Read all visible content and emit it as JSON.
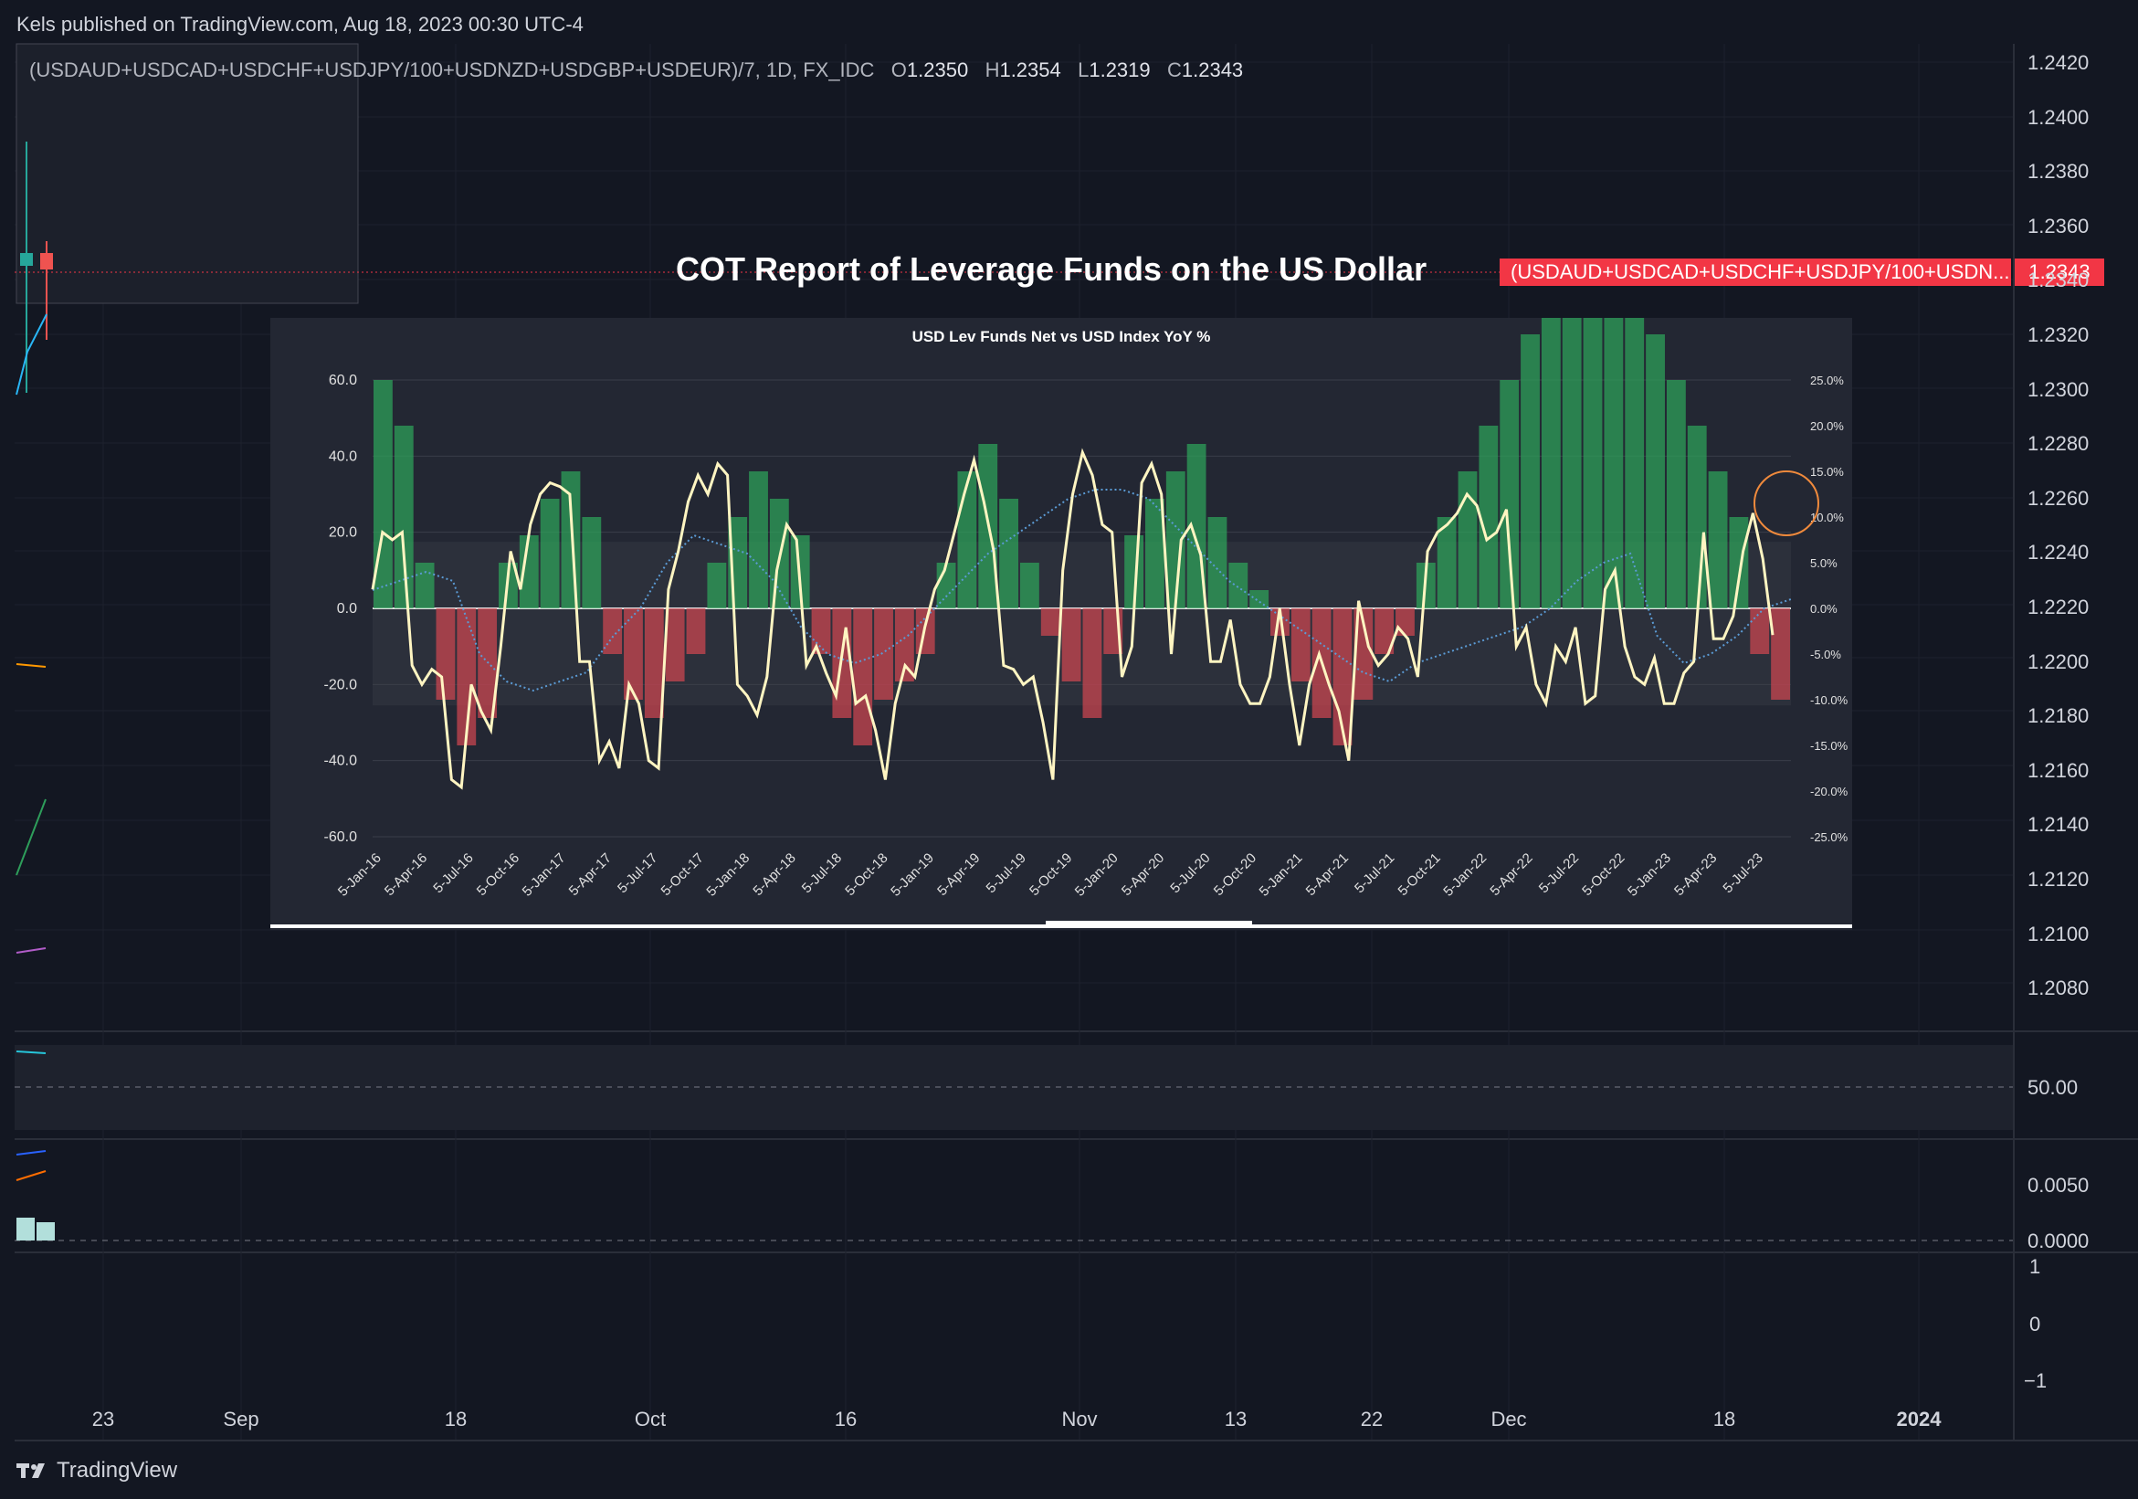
{
  "header": {
    "published": "Kels published on TradingView.com, Aug 18, 2023 00:30 UTC-4"
  },
  "symbol": {
    "name": "(USDAUD+USDCAD+USDCHF+USDJPY/100+USDNZD+USDGBP+USDEUR)/7, 1D, FX_IDC",
    "o_label": "O",
    "o": "1.2350",
    "h_label": "H",
    "h": "1.2354",
    "l_label": "L",
    "l": "1.2319",
    "c_label": "C",
    "c": "1.2343"
  },
  "overlay_title": "COT Report of Leverage Funds on the US Dollar",
  "price_tag": {
    "label": "(USDAUD+USDCAD+USDCHF+USDJPY/100+USDN...",
    "value": "1.2343"
  },
  "price_axis": [
    "1.2420",
    "1.2400",
    "1.2380",
    "1.2360",
    "1.2340",
    "1.2320",
    "1.2300",
    "1.2280",
    "1.2260",
    "1.2240",
    "1.2220",
    "1.2200",
    "1.2180",
    "1.2160",
    "1.2140",
    "1.2120",
    "1.2100",
    "1.2080"
  ],
  "rsi_axis": [
    "50.00"
  ],
  "macd_axis": [
    "0.0050",
    "0.0000"
  ],
  "osc_axis": [
    "1",
    "0",
    "−1"
  ],
  "time_axis": [
    "23",
    "Sep",
    "18",
    "Oct",
    "16",
    "Nov",
    "13",
    "22",
    "Dec",
    "18",
    "2024"
  ],
  "footer": {
    "brand": "TradingView"
  },
  "colors": {
    "background": "#131722",
    "up": "#26a69a",
    "down": "#ef5350",
    "price_tag": "#f23645",
    "inset_bg": "#232733",
    "line": "#fff5c2",
    "dotted": "#5b9bd5"
  },
  "chart_data": {
    "type": "bar",
    "title": "USD Lev Funds Net vs USD Index YoY %",
    "x_labels": [
      "5-Jan-16",
      "5-Apr-16",
      "5-Jul-16",
      "5-Oct-16",
      "5-Jan-17",
      "5-Apr-17",
      "5-Jul-17",
      "5-Oct-17",
      "5-Jan-18",
      "5-Apr-18",
      "5-Jul-18",
      "5-Oct-18",
      "5-Jan-19",
      "5-Apr-19",
      "5-Jul-19",
      "5-Oct-19",
      "5-Jan-20",
      "5-Apr-20",
      "5-Jul-20",
      "5-Oct-20",
      "5-Jan-21",
      "5-Apr-21",
      "5-Jul-21",
      "5-Oct-21",
      "5-Jan-22",
      "5-Apr-22",
      "5-Jul-22",
      "5-Oct-22",
      "5-Jan-23",
      "5-Apr-23",
      "5-Jul-23"
    ],
    "y_left_ticks": [
      "60.0",
      "40.0",
      "20.0",
      "0.0",
      "-20.0",
      "-40.0",
      "-60.0"
    ],
    "y_left_range": [
      -60,
      60
    ],
    "y_right_ticks": [
      "25.0%",
      "20.0%",
      "15.0%",
      "10.0%",
      "5.0%",
      "0.0%",
      "-5.0%",
      "-10.0%",
      "-15.0%",
      "-20.0%",
      "-25.0%"
    ],
    "y_right_range": [
      -25,
      25
    ],
    "series": [
      {
        "type": "line",
        "values": [
          5,
          20,
          18,
          20,
          -15,
          -20,
          -16,
          -18,
          -45,
          -47,
          -20,
          -27,
          -32,
          -10,
          15,
          5,
          22,
          30,
          33,
          32,
          30,
          -14,
          -14,
          -40,
          -35,
          -42,
          -20,
          -25,
          -40,
          -42,
          5,
          15,
          28,
          35,
          30,
          38,
          35,
          -20,
          -23,
          -28,
          -18,
          10,
          22,
          18,
          -15,
          -10,
          -17,
          -23,
          -5,
          -25,
          -23,
          -32,
          -45,
          -25,
          -15,
          -18,
          -5,
          5,
          10,
          20,
          30,
          39,
          28,
          15,
          -15,
          -16,
          -20,
          -18,
          -30,
          -45,
          10,
          30,
          41,
          35,
          22,
          20,
          -18,
          -10,
          33,
          38,
          30,
          -12,
          18,
          22,
          14,
          -14,
          -14,
          -3,
          -20,
          -25,
          -25,
          -18,
          0,
          -20,
          -36,
          -20,
          -12,
          -20,
          -27,
          -40,
          2,
          -10,
          -15,
          -12,
          -5,
          -8,
          -18,
          15,
          20,
          22,
          25,
          30,
          27,
          18,
          20,
          26,
          -10,
          -5,
          -20,
          -25,
          -10,
          -14,
          -5,
          -25,
          -23,
          5,
          10,
          -10,
          -18,
          -20,
          -13,
          -25,
          -25,
          -17,
          -14,
          20,
          -8,
          -8,
          -2,
          15,
          25,
          13,
          -7
        ],
        "note_hidden": false
      },
      {
        "type": "bar",
        "values": [
          25,
          20,
          5,
          -10,
          -15,
          -12,
          5,
          8,
          12,
          15,
          10,
          -5,
          -10,
          -12,
          -8,
          -5,
          5,
          10,
          15,
          12,
          8,
          -5,
          -12,
          -15,
          -10,
          -8,
          -5,
          5,
          15,
          18,
          12,
          5,
          -3,
          -8,
          -12,
          -5,
          8,
          12,
          15,
          18,
          10,
          5,
          2,
          -3,
          -8,
          -12,
          -15,
          -10,
          -5,
          -3,
          5,
          10,
          15,
          20,
          25,
          30,
          35,
          38,
          40,
          45,
          38,
          30,
          25,
          20,
          15,
          10,
          -5,
          -10
        ]
      },
      {
        "type": "line",
        "values": [
          2,
          3,
          4,
          3,
          -5,
          -8,
          -9,
          -8,
          -7,
          -3,
          0,
          5,
          8,
          7,
          6,
          3,
          -2,
          -5,
          -6,
          -5,
          -3,
          0,
          3,
          6,
          8,
          10,
          12,
          13,
          13,
          12,
          9,
          6,
          3,
          1,
          -1,
          -3,
          -5,
          -7,
          -8,
          -6,
          -5,
          -4,
          -3,
          -2,
          0,
          3,
          5,
          6,
          -3,
          -6,
          -5,
          -3,
          0,
          1
        ]
      }
    ]
  }
}
